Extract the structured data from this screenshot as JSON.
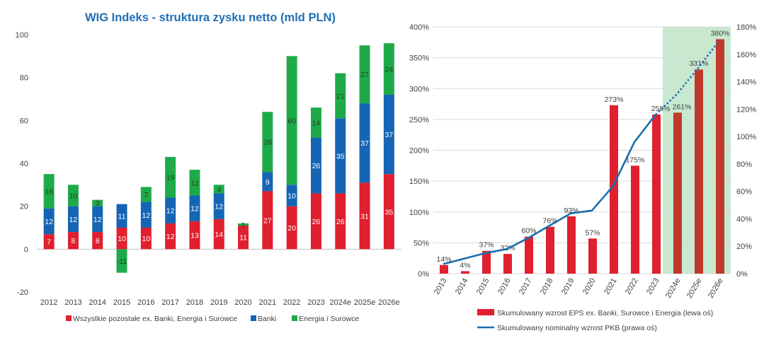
{
  "chart_data": [
    {
      "type": "bar",
      "stacked": true,
      "title": "WIG Indeks - struktura zysku netto (mld PLN)",
      "categories": [
        "2012",
        "2013",
        "2014",
        "2015",
        "2016",
        "2017",
        "2018",
        "2019",
        "2020",
        "2021",
        "2022",
        "2023",
        "2024e",
        "2025e",
        "2026e"
      ],
      "series": [
        {
          "name": "Wszystkie pozostałe ex. Banki, Energia i Surowce",
          "color": "#E0202E",
          "values": [
            7,
            8,
            8,
            10,
            10,
            12,
            13,
            14,
            11,
            27,
            20,
            26,
            26,
            31,
            35
          ]
        },
        {
          "name": "Banki",
          "color": "#1565B5",
          "values": [
            12,
            12,
            12,
            11,
            12,
            12,
            12,
            12,
            0,
            9,
            10,
            26,
            35,
            37,
            37
          ]
        },
        {
          "name": "Energia i Surowce",
          "color": "#1FAA4A",
          "values": [
            16,
            10,
            3,
            -11,
            7,
            19,
            12,
            4,
            1,
            28,
            60,
            14,
            21,
            27,
            24
          ]
        }
      ],
      "ylim": [
        -20,
        100
      ],
      "yticks": [
        -20,
        0,
        20,
        40,
        60,
        80,
        100
      ],
      "grid": false,
      "legend": "bottom",
      "title_color": "#1F6FB5"
    },
    {
      "type": "bar+line",
      "categories": [
        "2013",
        "2014",
        "2015",
        "2016",
        "2017",
        "2018",
        "2019",
        "2020",
        "2021",
        "2022",
        "2023",
        "2024e",
        "2025e",
        "2026e"
      ],
      "bars": {
        "name": "Skumulowany wzrost EPS ex. Banki, Surowce i Energia (lewa oś)",
        "values": [
          14,
          4,
          37,
          32,
          60,
          76,
          93,
          57,
          273,
          175,
          258,
          261,
          331,
          380
        ],
        "labels": [
          "14%",
          "4%",
          "37%",
          "32%",
          "60%",
          "76%",
          "93%",
          "57%",
          "273%",
          "175%",
          "258%",
          "261%",
          "331%",
          "380%"
        ],
        "color": "#E0202E",
        "forecast_color": "#C0392B"
      },
      "line": {
        "name": "Skumulowany nominalny wzrost PKB (prawa oś)",
        "x": [
          "2013",
          "2014",
          "2015",
          "2016",
          "2017",
          "2018",
          "2019",
          "2020",
          "2021",
          "2022",
          "2023",
          "2024e",
          "2025e",
          "2026e"
        ],
        "values": [
          7,
          11,
          15,
          18,
          26,
          35,
          44,
          46,
          64,
          96,
          116,
          131,
          150,
          170
        ],
        "dotted_from": "2023",
        "color": "#1A6FAF"
      },
      "left_axis": {
        "ylim": [
          0,
          400
        ],
        "ticks": [
          "0%",
          "50%",
          "100%",
          "150%",
          "200%",
          "250%",
          "300%",
          "350%",
          "400%"
        ]
      },
      "right_axis": {
        "ylim": [
          0,
          180
        ],
        "ticks": [
          "0%",
          "20%",
          "40%",
          "60%",
          "80%",
          "100%",
          "120%",
          "140%",
          "160%",
          "180%"
        ]
      },
      "forecast_shade": {
        "from": "2024e",
        "to": "2026e",
        "color": "#C8E9CF"
      },
      "grid": true,
      "legend": "bottom"
    }
  ]
}
